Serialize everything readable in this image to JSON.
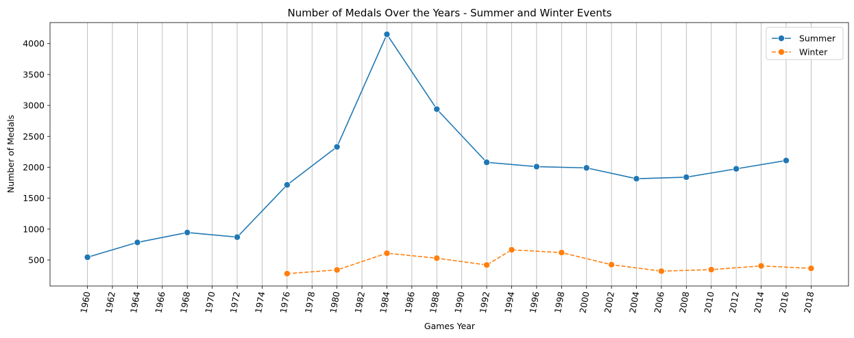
{
  "chart_data": {
    "type": "line",
    "title": "Number of Medals Over the Years - Summer and Winter Events",
    "xlabel": "Games Year",
    "ylabel": "Number of Medals",
    "xlim": [
      1957,
      2021
    ],
    "ylim": [
      80,
      4340
    ],
    "x_ticks": [
      1960,
      1962,
      1964,
      1966,
      1968,
      1970,
      1972,
      1974,
      1976,
      1978,
      1980,
      1982,
      1984,
      1986,
      1988,
      1990,
      1992,
      1994,
      1996,
      1998,
      2000,
      2002,
      2004,
      2006,
      2008,
      2010,
      2012,
      2014,
      2016,
      2018
    ],
    "y_ticks": [
      500,
      1000,
      1500,
      2000,
      2500,
      3000,
      3500,
      4000
    ],
    "grid": "x",
    "x_tick_rotation": "80 degrees",
    "legend_position": "top-right",
    "series": [
      {
        "name": "Summer",
        "color": "#1f77b4",
        "line_style": "solid",
        "marker": "circle",
        "x": [
          1960,
          1964,
          1968,
          1972,
          1976,
          1980,
          1984,
          1988,
          1992,
          1996,
          2000,
          2004,
          2008,
          2012,
          2016
        ],
        "y": [
          545,
          785,
          945,
          870,
          1715,
          2330,
          4150,
          2940,
          2080,
          2010,
          1990,
          1815,
          1840,
          1975,
          2110
        ]
      },
      {
        "name": "Winter",
        "color": "#ff7f0e",
        "line_style": "dashed",
        "marker": "circle",
        "x": [
          1976,
          1980,
          1984,
          1988,
          1992,
          1994,
          1998,
          2002,
          2006,
          2010,
          2014,
          2018
        ],
        "y": [
          280,
          340,
          610,
          530,
          420,
          665,
          620,
          425,
          320,
          345,
          405,
          365
        ]
      }
    ]
  }
}
